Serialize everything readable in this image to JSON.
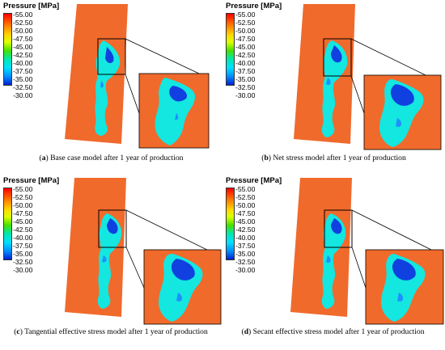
{
  "legend": {
    "title": "Pressure [MPa]",
    "ticks": [
      "-55.00",
      "-52.50",
      "-50.00",
      "-47.50",
      "-45.00",
      "-42.50",
      "-40.00",
      "-37.50",
      "-35.00",
      "-32.50",
      "-30.00"
    ],
    "colors": {
      "background_field": "#f06a2c",
      "high": "#ff0000",
      "mid": "#3ce000",
      "low": "#0020d0",
      "plume": "#14e6e0"
    }
  },
  "panels": [
    {
      "letter": "a",
      "text": " Base case model after 1 year of production"
    },
    {
      "letter": "b",
      "text": " Net stress model after 1 year of production"
    },
    {
      "letter": "c",
      "text": " Tangential effective stress model after 1 year of production"
    },
    {
      "letter": "d",
      "text": " Secant effective stress model after 1 year of production"
    }
  ]
}
